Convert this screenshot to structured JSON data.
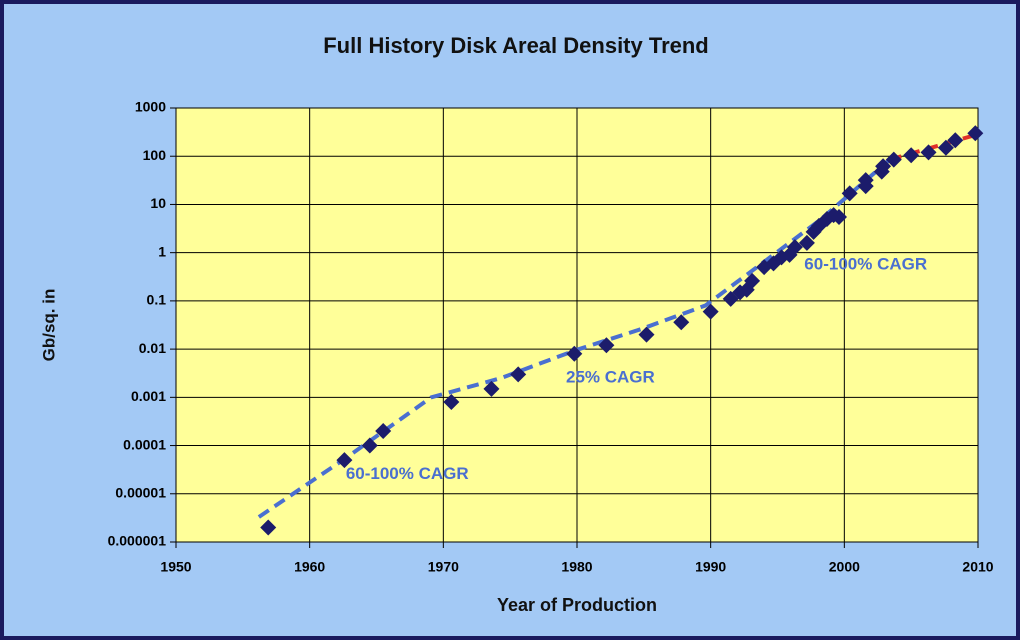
{
  "chart_data": {
    "type": "scatter",
    "title": "Full History Disk Areal Density Trend",
    "x_label": "Year of Production",
    "y_label": "Gb/sq. in",
    "log_y": true,
    "grid": true,
    "background_color": "#a3c9f5",
    "plot_color": "#ffff99",
    "xlim": [
      1950,
      2010
    ],
    "xticks": [
      1950,
      1960,
      1970,
      1980,
      1990,
      2000,
      2010
    ],
    "ylim": [
      1e-06,
      1000
    ],
    "yticks": [
      {
        "value": 1e-06,
        "label": "0.000001"
      },
      1e-05,
      0.0001,
      0.001,
      0.01,
      0.1,
      1,
      10,
      100,
      1000
    ],
    "series": [
      {
        "color": "#1c1c6b",
        "x": [
          1956.9,
          1962.6,
          1964.5,
          1965.5,
          1970.6,
          1973.6,
          1975.6,
          1979.8,
          1982.2,
          1985.2,
          1987.8,
          1990,
          1991.5,
          1992.2,
          1992.7,
          1993.1,
          1994,
          1994.7,
          1995.3,
          1995.9,
          1996.3,
          1997.2,
          1997.7,
          1998.1,
          1998.7,
          1999.2,
          1999.6,
          2000.4,
          2001.6,
          2001.6,
          2002.8,
          2002.9,
          2003.7,
          2005,
          2006.3,
          2007.6,
          2008.3,
          2009.8
        ],
        "values": [
          2e-06,
          5e-05,
          0.0001,
          0.0002,
          0.0008,
          0.0015,
          0.003,
          0.008,
          0.012,
          0.02,
          0.036,
          0.06,
          0.11,
          0.15,
          0.17,
          0.26,
          0.5,
          0.6,
          0.8,
          0.9,
          1.3,
          1.6,
          2.7,
          3.6,
          5,
          6,
          5.5,
          17,
          24,
          32,
          48,
          62,
          85,
          105,
          120,
          150,
          215,
          300
        ]
      }
    ],
    "trend_lines": [
      {
        "color": "#4a6fd0",
        "x": [
          1956.2,
          1962.7,
          1969.1,
          1974.3,
          1979.9,
          1984.8,
          1989.6,
          1993.7,
          1998.2,
          2003.4
        ],
        "values": [
          3.3e-06,
          5.5e-05,
          0.001,
          0.0025,
          0.0095,
          0.026,
          0.08,
          0.56,
          4.8,
          85
        ]
      },
      {
        "color": "#e0302a",
        "x": [
          2003.4,
          2009.8
        ],
        "values": [
          85,
          275
        ]
      }
    ],
    "annotations": [
      {
        "text": "60-100% CAGR",
        "x": 1967.3,
        "y": 2.5e-05
      },
      {
        "text": "25% CAGR",
        "x": 1982.5,
        "y": 0.0025
      },
      {
        "text": "60-100% CAGR",
        "x": 2001.6,
        "y": 0.55
      }
    ],
    "annotation_color": "#4a6fd0"
  }
}
